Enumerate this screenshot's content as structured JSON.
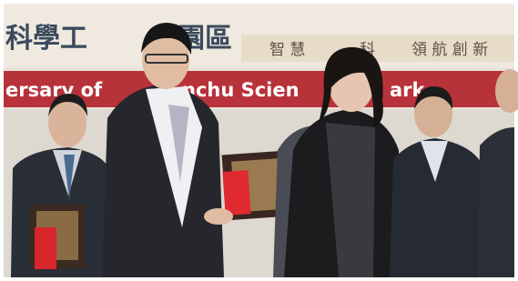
{
  "banner": {
    "title_start": "科學工",
    "title_end": "園區",
    "slogan": [
      "智 慧",
      "科",
      "領 航 創 新"
    ]
  },
  "red_banner": [
    "ersary of",
    "nchu Scien",
    "ark"
  ]
}
